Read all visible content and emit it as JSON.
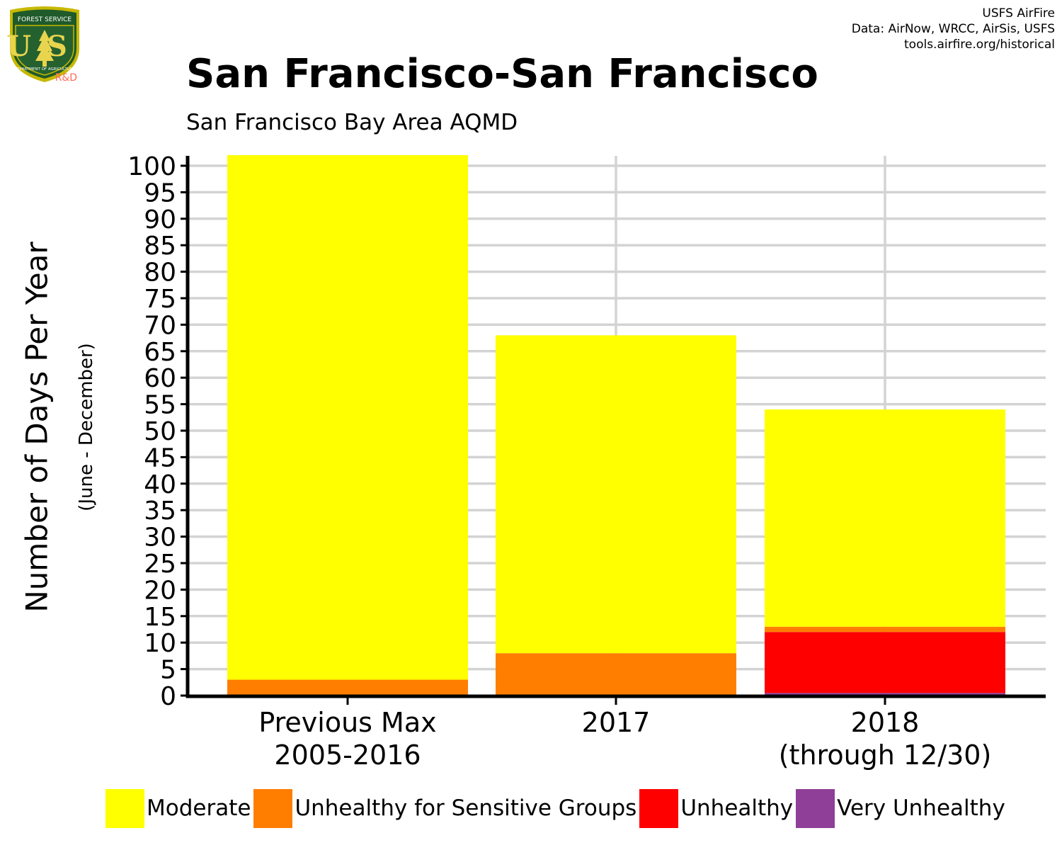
{
  "logo": {
    "top_text": "FOREST SERVICE",
    "letters": "US",
    "bottom_text": "DEPARTMENT OF AGRICULTURE",
    "badge": "R&D"
  },
  "credits": {
    "line1": "USFS AirFire",
    "line2": "Data: AirNow, WRCC, AirSis, USFS",
    "line3": "tools.airfire.org/historical"
  },
  "colors": {
    "moderate": "#ffff00",
    "usg": "#ff7e00",
    "unhealthy": "#ff0000",
    "very_unhealthy": "#8f3f97",
    "grid": "#d3d3d3",
    "axis": "#000000"
  },
  "chart_data": {
    "type": "bar",
    "stacked": true,
    "title": "San Francisco-San Francisco",
    "subtitle": "San Francisco Bay Area AQMD",
    "ylabel": "Number of Days Per Year",
    "ylabel_secondary": "(June - December)",
    "xlabel": "",
    "ylim": [
      0,
      102
    ],
    "yticks": [
      0,
      5,
      10,
      15,
      20,
      25,
      30,
      35,
      40,
      45,
      50,
      55,
      60,
      65,
      70,
      75,
      80,
      85,
      90,
      95,
      100
    ],
    "grid": true,
    "legend_position": "bottom",
    "categories": [
      [
        "Previous Max",
        "2005-2016"
      ],
      [
        "2017"
      ],
      [
        "2018",
        "(through 12/30)"
      ]
    ],
    "series": [
      {
        "name": "Very Unhealthy",
        "color": "#8f3f97",
        "values": [
          0,
          0,
          0.5
        ]
      },
      {
        "name": "Unhealthy",
        "color": "#ff0000",
        "values": [
          0,
          0,
          11.5
        ]
      },
      {
        "name": "Unhealthy for Sensitive Groups",
        "color": "#ff7e00",
        "values": [
          3,
          8,
          1
        ]
      },
      {
        "name": "Moderate",
        "color": "#ffff00",
        "values": [
          99,
          60,
          41
        ]
      }
    ],
    "legend_order": [
      "Moderate",
      "Unhealthy for Sensitive Groups",
      "Unhealthy",
      "Very Unhealthy"
    ]
  }
}
